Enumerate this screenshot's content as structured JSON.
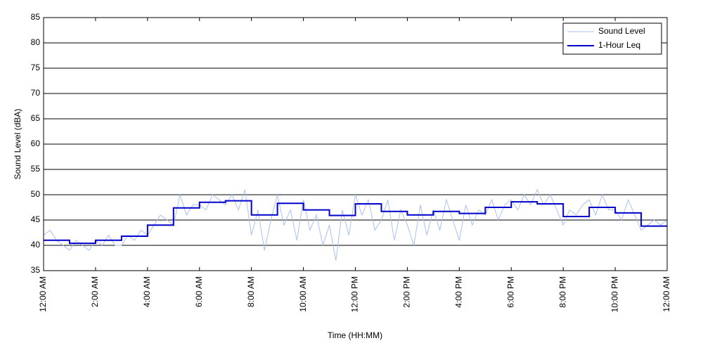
{
  "chart_data": {
    "type": "line",
    "xlabel": "Time (HH:MM)",
    "ylabel": "Sound Level (dBA)",
    "xlim": [
      0,
      24
    ],
    "xticks": [
      {
        "value": 0,
        "label": "12:00 AM"
      },
      {
        "value": 2,
        "label": "2:00 AM"
      },
      {
        "value": 4,
        "label": "4:00 AM"
      },
      {
        "value": 6,
        "label": "6:00 AM"
      },
      {
        "value": 8,
        "label": "8:00 AM"
      },
      {
        "value": 10,
        "label": "10:00 AM"
      },
      {
        "value": 12,
        "label": "12:00 PM"
      },
      {
        "value": 14,
        "label": "2:00 PM"
      },
      {
        "value": 16,
        "label": "4:00 PM"
      },
      {
        "value": 18,
        "label": "6:00 PM"
      },
      {
        "value": 20,
        "label": "8:00 PM"
      },
      {
        "value": 22,
        "label": "10:00 PM"
      },
      {
        "value": 24,
        "label": "12:00 AM"
      }
    ],
    "ylim": [
      35,
      85
    ],
    "yticks": [
      35,
      40,
      45,
      50,
      55,
      60,
      65,
      70,
      75,
      80,
      85
    ],
    "grid": "y",
    "legend": "upper right",
    "series": [
      {
        "name": "Sound Level",
        "color": "#a9c1ee",
        "step": false,
        "x": [
          0,
          0.25,
          0.5,
          0.75,
          1,
          1.25,
          1.5,
          1.75,
          2,
          2.25,
          2.5,
          2.75,
          3,
          3.25,
          3.5,
          3.75,
          4,
          4.25,
          4.5,
          4.75,
          5,
          5.25,
          5.5,
          5.75,
          6,
          6.25,
          6.5,
          6.75,
          7,
          7.25,
          7.5,
          7.75,
          8,
          8.25,
          8.5,
          8.75,
          9,
          9.25,
          9.5,
          9.75,
          10,
          10.25,
          10.5,
          10.75,
          11,
          11.25,
          11.5,
          11.75,
          12,
          12.25,
          12.5,
          12.75,
          13,
          13.25,
          13.5,
          13.75,
          14,
          14.25,
          14.5,
          14.75,
          15,
          15.25,
          15.5,
          15.75,
          16,
          16.25,
          16.5,
          16.75,
          17,
          17.25,
          17.5,
          17.75,
          18,
          18.25,
          18.5,
          18.75,
          19,
          19.25,
          19.5,
          19.75,
          20,
          20.25,
          20.5,
          20.75,
          21,
          21.25,
          21.5,
          21.75,
          22,
          22.25,
          22.5,
          22.75,
          23,
          23.25,
          23.5,
          23.75,
          24
        ],
        "values": [
          42,
          43,
          41,
          40,
          39,
          41,
          40,
          39,
          41,
          40,
          42,
          40,
          40,
          42,
          41,
          43,
          42,
          44,
          46,
          45,
          44,
          50,
          46,
          48,
          48,
          47,
          50,
          49,
          48,
          50,
          47,
          51,
          42,
          47,
          39,
          45,
          50,
          44,
          47,
          41,
          49,
          43,
          46,
          40,
          44,
          37,
          47,
          42,
          50,
          46,
          49,
          43,
          45,
          49,
          41,
          47,
          44,
          40,
          48,
          42,
          47,
          43,
          49,
          45,
          41,
          48,
          44,
          47,
          46,
          49,
          45,
          48,
          49,
          47,
          50,
          48,
          51,
          48,
          50,
          47,
          44,
          47,
          46,
          48,
          49,
          46,
          50,
          47,
          47,
          45,
          49,
          46,
          43,
          44,
          45,
          44,
          45
        ]
      },
      {
        "name": "1-Hour Leq",
        "color": "#0000cc",
        "step": true,
        "x": [
          0,
          1,
          2,
          3,
          4,
          5,
          6,
          7,
          8,
          9,
          10,
          11,
          12,
          13,
          14,
          15,
          16,
          17,
          18,
          19,
          20,
          21,
          22,
          23
        ],
        "values": [
          41.0,
          40.4,
          41.0,
          41.8,
          44.0,
          47.4,
          48.5,
          48.8,
          46.0,
          48.3,
          47.0,
          45.9,
          48.2,
          46.7,
          46.0,
          46.7,
          46.3,
          47.5,
          48.6,
          48.2,
          45.7,
          47.5,
          46.4,
          43.8
        ]
      }
    ]
  }
}
